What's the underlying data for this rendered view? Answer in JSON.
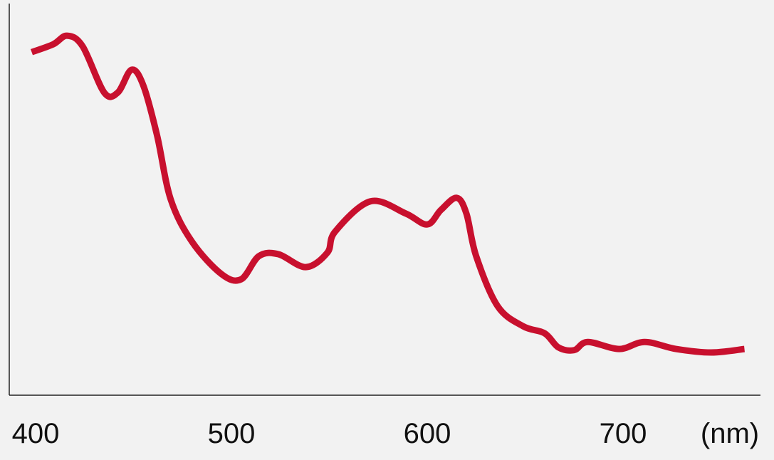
{
  "chart_data": {
    "type": "line",
    "title": "",
    "xlabel": "(nm)",
    "ylabel": "",
    "xlim": [
      385,
      772
    ],
    "ylim": [
      0,
      100
    ],
    "x_ticks": [
      400,
      500,
      600,
      700
    ],
    "grid": false,
    "line_color": "#c8102e",
    "series": [
      {
        "x": [
          398,
          409,
          416,
          424,
          435,
          442,
          449,
          455,
          462,
          469,
          480,
          495,
          505,
          514,
          524,
          538,
          549,
          553,
          571,
          589,
          600,
          607,
          615,
          620,
          625,
          636,
          649,
          660,
          667,
          675,
          682,
          698,
          711,
          727,
          745,
          762
        ],
        "y": [
          87.6,
          89.6,
          91.8,
          89.1,
          77.3,
          77.3,
          83.1,
          79.1,
          66.4,
          50,
          39.1,
          30.9,
          29.6,
          35.5,
          36,
          32.7,
          36.4,
          41.8,
          49.5,
          46.4,
          43.6,
          47.3,
          50.4,
          46.4,
          35.5,
          22.7,
          17.6,
          15.8,
          12.2,
          11.5,
          13.6,
          11.8,
          13.6,
          11.8,
          10.9,
          11.8
        ]
      }
    ]
  }
}
